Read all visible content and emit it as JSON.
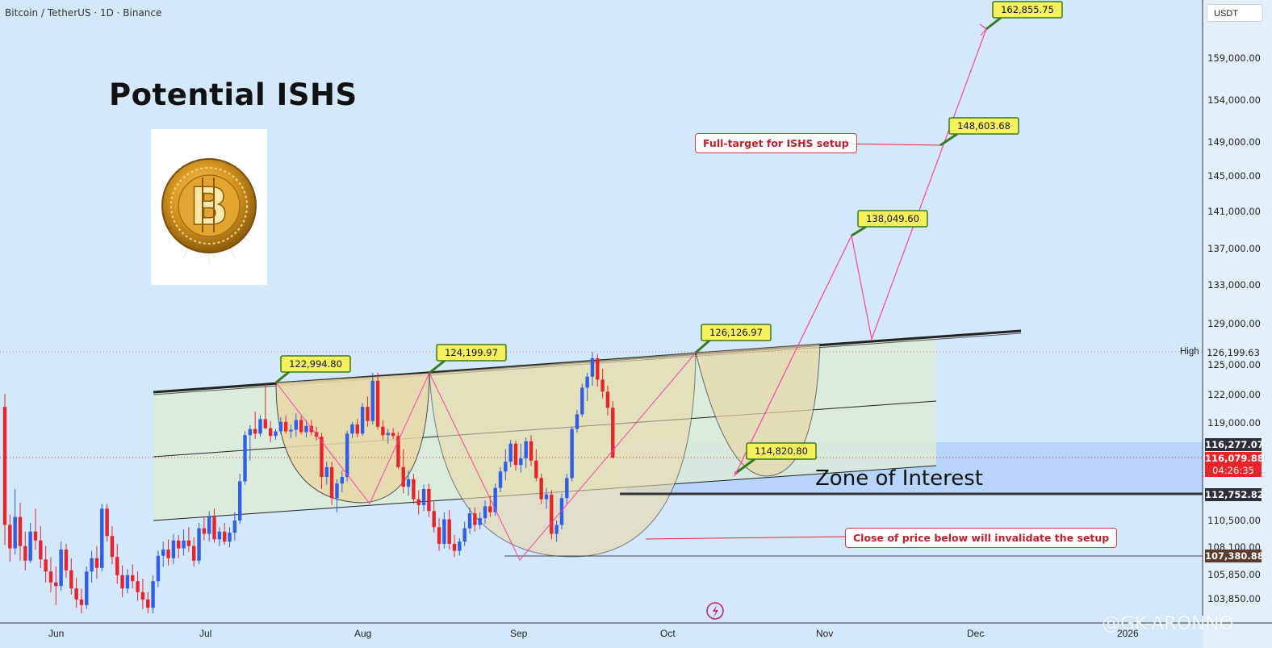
{
  "header": {
    "symbol": "Bitcoin / TetherUS · 1D · Binance"
  },
  "title": "Potential ISHS",
  "zone_label": "Zone of Interest",
  "callouts": {
    "full_target": "Full-target for ISHS setup",
    "invalidation": "Close of price below will invalidate the setup"
  },
  "axis": {
    "currency": "USDT",
    "high_label": "High",
    "y_ticks": [
      "159,000.00",
      "154,000.00",
      "149,000.00",
      "145,000.00",
      "141,000.00",
      "137,000.00",
      "133,000.00",
      "129,000.00",
      "125,000.00",
      "122,000.00",
      "119,000.00",
      "110,500.00",
      "108,100.00",
      "105,850.00",
      "103,850.00"
    ],
    "x_ticks": [
      "Jun",
      "Jul",
      "Aug",
      "Sep",
      "Oct",
      "Nov",
      "Dec",
      "2026"
    ]
  },
  "price_tags": {
    "high": "126,199.63",
    "t1": "116,277.07",
    "current": "116,079.88",
    "countdown": "04:26:35",
    "zone": "112,752.82",
    "low": "107,380.88"
  },
  "watermark": "@GK-ARONNO",
  "colors": {
    "background": "#d4e8fb",
    "up": "#2f5ee8",
    "down": "#e8232a",
    "pink": "#ff3fa6",
    "channel_fill": "#dcecd6",
    "cup_fill": "#e9d9a8",
    "zone_fill": "#b5d4fb",
    "label_fill": "#f4f15d",
    "label_border": "#3a7a1a"
  },
  "chart_data": {
    "type": "candlestick",
    "ylim": [
      102800,
      163500
    ],
    "scale": "non-linear",
    "x_range": [
      "Jun",
      "2026"
    ],
    "annotations": [
      {
        "label": "122,994.80",
        "value": 122994.8,
        "date": "Jul"
      },
      {
        "label": "124,199.97",
        "value": 124199.97,
        "date": "Aug"
      },
      {
        "label": "126,126.97",
        "value": 126126.97,
        "date": "Oct"
      },
      {
        "label": "114,820.80",
        "value": 114820.8,
        "date": "Oct"
      },
      {
        "label": "138,049.60",
        "value": 138049.6,
        "date": "Nov"
      },
      {
        "label": "148,603.68",
        "value": 148603.68,
        "date": "Nov"
      },
      {
        "label": "162,855.75",
        "value": 162855.75,
        "date": "Dec"
      }
    ],
    "levels": {
      "high": 126199.63,
      "current": 116079.88,
      "zone_top": 116277.07,
      "zone_bottom": 112752.82,
      "invalidation": 107380.88
    },
    "candles": [
      [
        120700,
        122100,
        108300,
        110100
      ],
      [
        110100,
        111000,
        106900,
        108000
      ],
      [
        108000,
        113200,
        107500,
        110800
      ],
      [
        110800,
        112000,
        107000,
        108200
      ],
      [
        108200,
        109500,
        106200,
        107000
      ],
      [
        107000,
        110300,
        106800,
        109500
      ],
      [
        109500,
        111500,
        107900,
        108700
      ],
      [
        108700,
        110000,
        106400,
        107100
      ],
      [
        107100,
        108200,
        105200,
        106100
      ],
      [
        106100,
        107300,
        104400,
        105200
      ],
      [
        105200,
        106500,
        103400,
        104900
      ],
      [
        104900,
        108600,
        104500,
        107900
      ],
      [
        107900,
        108400,
        105600,
        106200
      ],
      [
        106200,
        107200,
        104200,
        104700
      ],
      [
        104700,
        105600,
        103200,
        103800
      ],
      [
        103800,
        104700,
        102700,
        103400
      ],
      [
        103400,
        106500,
        103100,
        106100
      ],
      [
        106100,
        107800,
        105200,
        107200
      ],
      [
        107200,
        108200,
        105500,
        106400
      ],
      [
        106400,
        111900,
        106100,
        111500
      ],
      [
        111500,
        111900,
        108600,
        109100
      ],
      [
        109100,
        110000,
        106700,
        107300
      ],
      [
        107300,
        108400,
        105100,
        105800
      ],
      [
        105800,
        106600,
        104000,
        104700
      ],
      [
        104700,
        106300,
        104300,
        105800
      ],
      [
        105800,
        106700,
        104700,
        105300
      ],
      [
        105300,
        106100,
        103700,
        104400
      ],
      [
        104400,
        105500,
        103100,
        103800
      ],
      [
        103800,
        104400,
        102800,
        103200
      ],
      [
        103200,
        105800,
        102700,
        105300
      ],
      [
        105300,
        107800,
        104800,
        107400
      ],
      [
        107400,
        108600,
        106500,
        107900
      ],
      [
        107900,
        108800,
        106600,
        107200
      ],
      [
        107200,
        109300,
        106700,
        108700
      ],
      [
        108700,
        109200,
        107200,
        108000
      ],
      [
        108000,
        109700,
        107400,
        108700
      ],
      [
        108700,
        109900,
        107700,
        108200
      ],
      [
        108200,
        109000,
        106500,
        107000
      ],
      [
        107000,
        110300,
        106700,
        109800
      ],
      [
        109800,
        110800,
        108700,
        109300
      ],
      [
        109300,
        111300,
        108600,
        110800
      ],
      [
        110800,
        111500,
        108500,
        108800
      ],
      [
        108800,
        109900,
        108200,
        109500
      ],
      [
        109500,
        110300,
        108300,
        108600
      ],
      [
        108600,
        109900,
        108100,
        109400
      ],
      [
        109400,
        111200,
        108700,
        110500
      ],
      [
        110500,
        114600,
        110200,
        113900
      ],
      [
        113900,
        117900,
        113600,
        117400
      ],
      [
        117400,
        118700,
        115800,
        118200
      ],
      [
        118200,
        120200,
        116900,
        117600
      ],
      [
        117600,
        119800,
        117200,
        119400
      ],
      [
        119400,
        123000,
        118200,
        118300
      ],
      [
        118300,
        119200,
        116500,
        117300
      ],
      [
        117300,
        118200,
        116800,
        117900
      ],
      [
        117900,
        119600,
        117500,
        119100
      ],
      [
        119100,
        119800,
        117600,
        117900
      ],
      [
        117900,
        118800,
        117000,
        118100
      ],
      [
        118100,
        120000,
        117200,
        119300
      ],
      [
        119300,
        119700,
        117500,
        117800
      ],
      [
        117800,
        119300,
        117100,
        118600
      ],
      [
        118600,
        119300,
        117400,
        117800
      ],
      [
        117800,
        118500,
        116700,
        117200
      ],
      [
        117200,
        117700,
        113200,
        114300
      ],
      [
        114300,
        115700,
        113600,
        115200
      ],
      [
        115200,
        115700,
        111800,
        112400
      ],
      [
        112400,
        114100,
        111200,
        113700
      ],
      [
        113700,
        114900,
        112900,
        114300
      ],
      [
        114300,
        118000,
        113900,
        117600
      ],
      [
        117600,
        119100,
        117000,
        118800
      ],
      [
        118800,
        119400,
        117100,
        117600
      ],
      [
        117600,
        121100,
        117300,
        120700
      ],
      [
        120700,
        121800,
        118500,
        119200
      ],
      [
        119200,
        124200,
        118800,
        123400
      ],
      [
        123400,
        124200,
        118100,
        118500
      ],
      [
        118500,
        119300,
        116800,
        117400
      ],
      [
        117400,
        118200,
        116300,
        117700
      ],
      [
        117700,
        118300,
        116900,
        117300
      ],
      [
        117300,
        117800,
        115000,
        115200
      ],
      [
        115200,
        116200,
        112800,
        113400
      ],
      [
        113400,
        114900,
        112600,
        114100
      ],
      [
        114100,
        114600,
        111900,
        112300
      ],
      [
        112300,
        113100,
        111000,
        111800
      ],
      [
        111800,
        113600,
        111300,
        113200
      ],
      [
        113200,
        113700,
        110800,
        111300
      ],
      [
        111300,
        112100,
        109400,
        109900
      ],
      [
        109900,
        110700,
        107800,
        108400
      ],
      [
        108400,
        111200,
        108000,
        110600
      ],
      [
        110600,
        111400,
        107900,
        108400
      ],
      [
        108400,
        109200,
        107300,
        107800
      ],
      [
        107800,
        108900,
        107400,
        108600
      ],
      [
        108600,
        110400,
        108200,
        109800
      ],
      [
        109800,
        111600,
        109300,
        111100
      ],
      [
        111100,
        111600,
        109500,
        110100
      ],
      [
        110100,
        111200,
        109700,
        110700
      ],
      [
        110700,
        112200,
        110200,
        111700
      ],
      [
        111700,
        112600,
        110800,
        111200
      ],
      [
        111200,
        113700,
        110900,
        113300
      ],
      [
        113300,
        115200,
        112900,
        114800
      ],
      [
        114800,
        116200,
        114000,
        115700
      ],
      [
        115700,
        116800,
        115200,
        116300
      ],
      [
        116300,
        116700,
        114900,
        115400
      ],
      [
        115400,
        116300,
        114700,
        116000
      ],
      [
        116000,
        117100,
        115100,
        116600
      ],
      [
        116600,
        117400,
        115300,
        115800
      ],
      [
        115800,
        116200,
        113900,
        114200
      ],
      [
        114200,
        114600,
        111900,
        112300
      ],
      [
        112300,
        113300,
        111500,
        112700
      ],
      [
        112700,
        113100,
        108800,
        109300
      ],
      [
        109300,
        110500,
        108600,
        110100
      ],
      [
        110100,
        112800,
        109700,
        112400
      ],
      [
        112400,
        114600,
        111900,
        114200
      ],
      [
        114200,
        118500,
        113900,
        118200
      ],
      [
        118200,
        120400,
        117700,
        119900
      ],
      [
        119900,
        123100,
        119600,
        122700
      ],
      [
        122700,
        124200,
        121300,
        123800
      ],
      [
        123800,
        126199.63,
        122900,
        125600
      ],
      [
        125600,
        126000,
        122800,
        123500
      ],
      [
        123500,
        124600,
        121600,
        122300
      ],
      [
        122300,
        122900,
        119800,
        120600
      ],
      [
        120600,
        121300,
        116000,
        116079.88
      ]
    ]
  }
}
